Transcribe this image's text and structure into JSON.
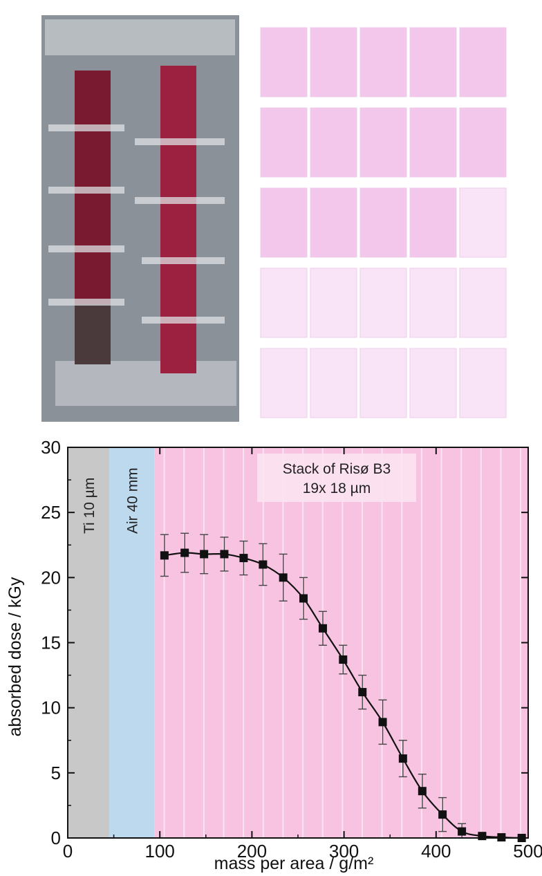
{
  "photos": {
    "left_photo": {
      "description_icon": "film-stack-photo",
      "colors": {
        "background": "#8a9198",
        "film": "#7a1a30",
        "film_light": "#9c2040",
        "tape": "#dde0e3"
      }
    },
    "right_photo": {
      "rows": 5,
      "cols": 5,
      "colors": {
        "film_strong": "#f3c6ec",
        "film_weak": "#f8e4f6"
      },
      "labels": [
        [
          "",
          "",
          "",
          "",
          ""
        ],
        [
          "",
          "",
          "",
          "",
          ""
        ],
        [
          "",
          "",
          "",
          "",
          ""
        ],
        [
          "",
          "",
          "",
          "",
          ""
        ],
        [
          "",
          "",
          "",
          "",
          ""
        ]
      ]
    }
  },
  "chart_data": {
    "type": "line",
    "title": "",
    "xlabel": "mass per area / g/m²",
    "ylabel": "absorbed dose / kGy",
    "xlim": [
      0,
      500
    ],
    "ylim": [
      0,
      30
    ],
    "xticks": [
      "0",
      "100",
      "200",
      "300",
      "400",
      "500"
    ],
    "yticks": [
      "0",
      "5",
      "10",
      "15",
      "20",
      "25",
      "30"
    ],
    "grid": false,
    "legend": "none",
    "regions": [
      {
        "label": "Ti 10 µm",
        "x_start": 0,
        "x_end": 45,
        "color": "#c8c8c8"
      },
      {
        "label": "Air 40 mm",
        "x_start": 45,
        "x_end": 94,
        "color": "#bcd9ee"
      },
      {
        "label": "",
        "x_start": 94,
        "x_end": 500,
        "color": "#f7c3e1"
      }
    ],
    "annotation": {
      "line1": "Stack of Risø B3",
      "line2": "19x 18 µm"
    },
    "series": [
      {
        "x": [
          105,
          127,
          148,
          170,
          191,
          212,
          234,
          256,
          277,
          299,
          320,
          342,
          364,
          385,
          407,
          428,
          450,
          471,
          493
        ],
        "y": [
          21.7,
          21.9,
          21.8,
          21.8,
          21.5,
          21.0,
          20.0,
          18.4,
          16.1,
          13.7,
          11.2,
          8.9,
          6.1,
          3.6,
          1.8,
          0.5,
          0.15,
          0.05,
          0.0
        ],
        "err": [
          1.6,
          1.5,
          1.5,
          1.3,
          1.3,
          1.6,
          1.8,
          1.6,
          1.3,
          1.1,
          1.3,
          1.7,
          1.4,
          1.3,
          1.3,
          0.6,
          0.2,
          0.1,
          0.1
        ],
        "color": "#111111"
      }
    ]
  }
}
